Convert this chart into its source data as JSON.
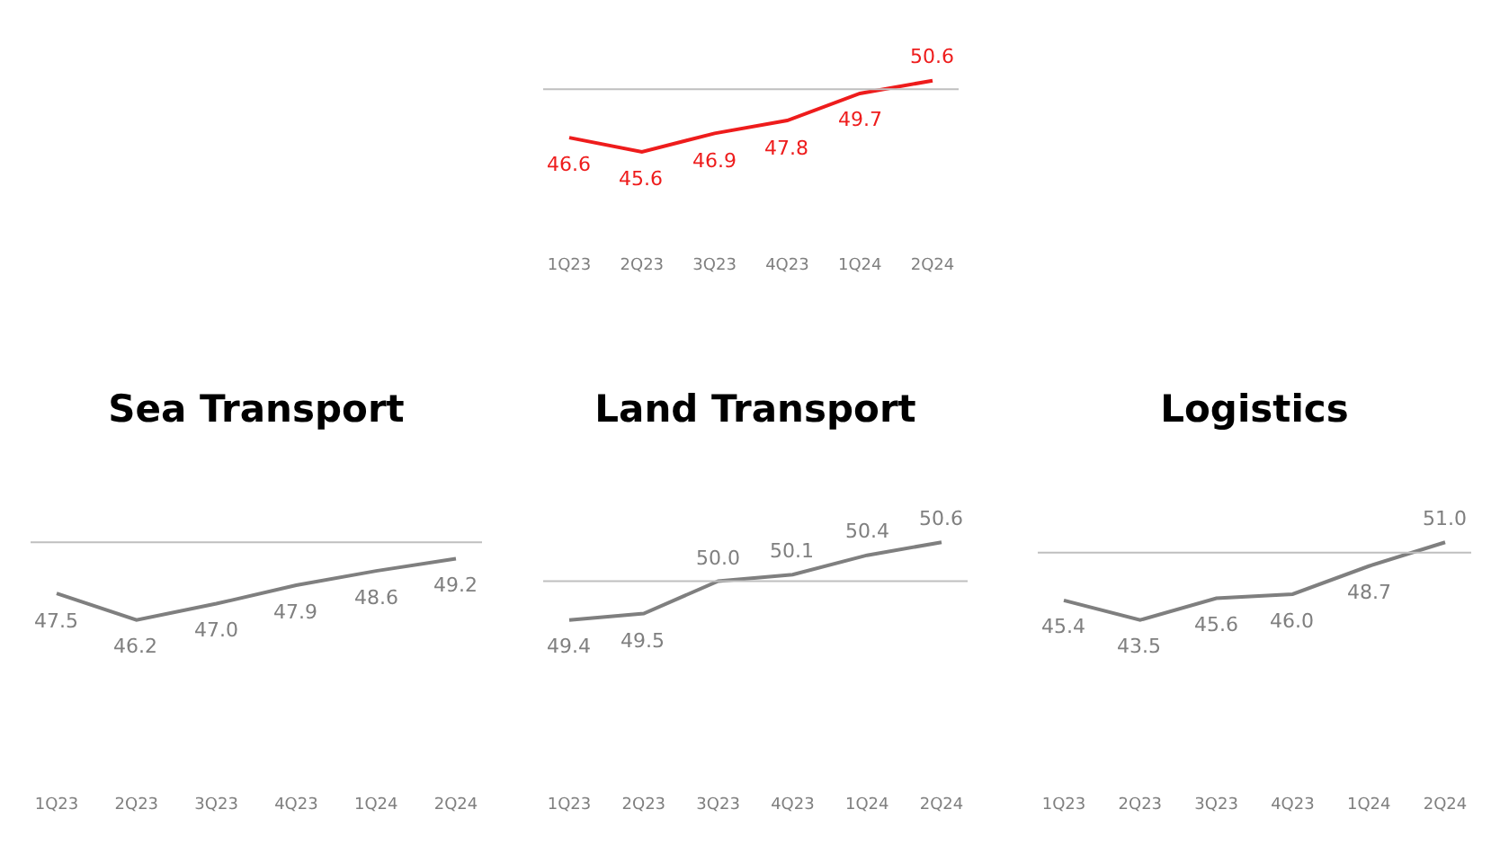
{
  "chart_data": [
    {
      "type": "line",
      "categories": [
        "1Q23",
        "2Q23",
        "3Q23",
        "4Q23",
        "1Q24",
        "2Q24"
      ],
      "series": [
        {
          "color": "#ee1c1c",
          "values": [
            46.6,
            45.6,
            46.9,
            47.8,
            49.7,
            50.6
          ],
          "value_labels": [
            "46.6",
            "45.6",
            "46.9",
            "47.8",
            "49.7",
            "50.6"
          ]
        }
      ],
      "ref_lines": [
        {
          "axis": "y",
          "value": 50,
          "color": "#bfbfbf"
        }
      ],
      "tick_labels": "x",
      "grid": false,
      "marker": "none",
      "line_style": "solid"
    },
    {
      "type": "line",
      "title": "Sea Transport",
      "categories": [
        "1Q23",
        "2Q23",
        "3Q23",
        "4Q23",
        "1Q24",
        "2Q24"
      ],
      "series": [
        {
          "color": "#7f7f7f",
          "values": [
            47.5,
            46.2,
            47.0,
            47.9,
            48.6,
            49.2
          ],
          "value_labels": [
            "47.5",
            "46.2",
            "47.0",
            "47.9",
            "48.6",
            "49.2"
          ]
        }
      ],
      "ref_lines": [
        {
          "axis": "y",
          "value": 50,
          "color": "#bfbfbf"
        }
      ],
      "tick_labels": "x",
      "grid": false,
      "marker": "none",
      "line_style": "solid"
    },
    {
      "type": "line",
      "title": "Land Transport",
      "categories": [
        "1Q23",
        "2Q23",
        "3Q23",
        "4Q23",
        "1Q24",
        "2Q24"
      ],
      "series": [
        {
          "color": "#7f7f7f",
          "values": [
            49.4,
            49.5,
            50.0,
            50.1,
            50.4,
            50.6
          ],
          "value_labels": [
            "49.4",
            "49.5",
            "50.0",
            "50.1",
            "50.4",
            "50.6"
          ]
        }
      ],
      "ref_lines": [
        {
          "axis": "y",
          "value": 50,
          "color": "#bfbfbf"
        }
      ],
      "tick_labels": "x",
      "grid": false,
      "marker": "none",
      "line_style": "solid"
    },
    {
      "type": "line",
      "title": "Logistics",
      "categories": [
        "1Q23",
        "2Q23",
        "3Q23",
        "4Q23",
        "1Q24",
        "2Q24"
      ],
      "series": [
        {
          "color": "#7f7f7f",
          "values": [
            45.4,
            43.5,
            45.6,
            46.0,
            48.7,
            51.0
          ],
          "value_labels": [
            "45.4",
            "43.5",
            "45.6",
            "46.0",
            "48.7",
            "51.0"
          ]
        }
      ],
      "ref_lines": [
        {
          "axis": "y",
          "value": 50,
          "color": "#bfbfbf"
        }
      ],
      "tick_labels": "x",
      "grid": false,
      "marker": "none",
      "line_style": "solid"
    }
  ]
}
